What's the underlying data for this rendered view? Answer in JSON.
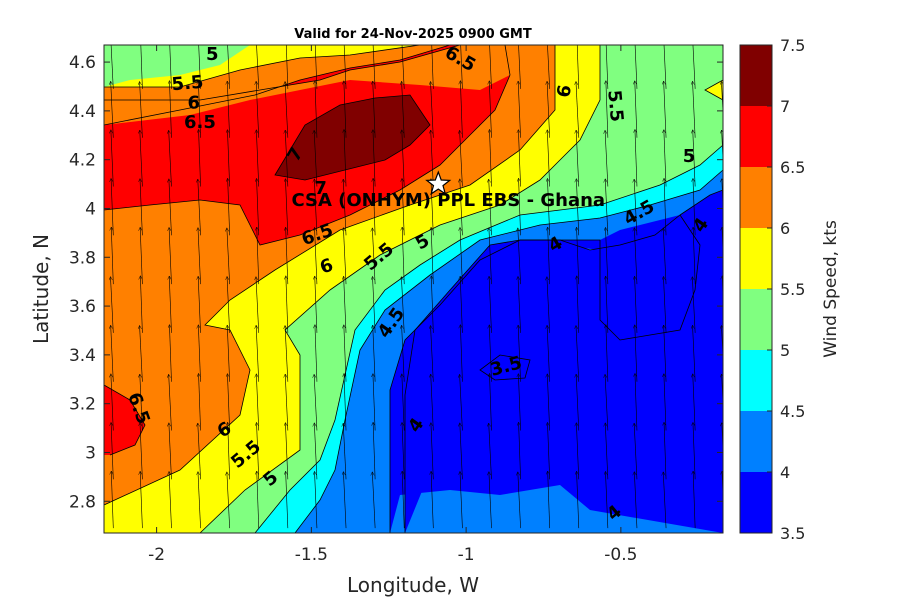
{
  "chart_data": {
    "type": "contour",
    "title": "Valid for 24-Nov-2025 0900 GMT",
    "xlabel": "Longitude, W",
    "ylabel": "Latitude, N",
    "xlim": [
      -2.17,
      -0.17
    ],
    "ylim": [
      2.67,
      4.67
    ],
    "x_ticks": [
      -2,
      -1.5,
      -1,
      -0.5
    ],
    "x_tick_labels": [
      "-2",
      "-1.5",
      "-1",
      "-0.5"
    ],
    "y_ticks": [
      2.8,
      3.0,
      3.2,
      3.4,
      3.6,
      3.8,
      4.0,
      4.2,
      4.4,
      4.6
    ],
    "y_tick_labels": [
      "2.8",
      "3",
      "3.2",
      "3.4",
      "3.6",
      "3.8",
      "4",
      "4.2",
      "4.4",
      "4.6"
    ],
    "colorbar": {
      "label": "Wind Speed, kts",
      "levels": [
        3.5,
        4,
        4.5,
        5,
        5.5,
        6,
        6.5,
        7,
        7.5
      ],
      "tick_labels": [
        "3.5",
        "4",
        "4.5",
        "5",
        "5.5",
        "6",
        "6.5",
        "7",
        "7.5"
      ],
      "colors": [
        "#0000ff",
        "#0080ff",
        "#00ffff",
        "#80ff80",
        "#ffff00",
        "#ff8000",
        "#ff0000",
        "#800000"
      ]
    },
    "contour_labels": [
      {
        "text": "5",
        "x": -1.82,
        "y": 4.63,
        "rot": 0
      },
      {
        "text": "5.5",
        "x": -1.9,
        "y": 4.51,
        "rot": -5
      },
      {
        "text": "6",
        "x": -1.88,
        "y": 4.43,
        "rot": 0
      },
      {
        "text": "6.5",
        "x": -1.86,
        "y": 4.35,
        "rot": 0
      },
      {
        "text": "6.5",
        "x": -1.02,
        "y": 4.61,
        "rot": 30
      },
      {
        "text": "6",
        "x": -0.68,
        "y": 4.48,
        "rot": -80
      },
      {
        "text": "5.5",
        "x": -0.52,
        "y": 4.42,
        "rot": 85
      },
      {
        "text": "7",
        "x": -1.55,
        "y": 4.22,
        "rot": -60
      },
      {
        "text": "7",
        "x": -1.47,
        "y": 4.08,
        "rot": 0
      },
      {
        "text": "5",
        "x": -0.28,
        "y": 4.21,
        "rot": 0
      },
      {
        "text": "4.5",
        "x": -0.44,
        "y": 3.98,
        "rot": -30
      },
      {
        "text": "4",
        "x": -0.24,
        "y": 3.93,
        "rot": -55
      },
      {
        "text": "6.5",
        "x": -1.48,
        "y": 3.89,
        "rot": -20
      },
      {
        "text": "5",
        "x": -1.14,
        "y": 3.86,
        "rot": -30
      },
      {
        "text": "5.5",
        "x": -1.28,
        "y": 3.8,
        "rot": -40
      },
      {
        "text": "6",
        "x": -1.45,
        "y": 3.76,
        "rot": -20
      },
      {
        "text": "4",
        "x": -0.71,
        "y": 3.85,
        "rot": -30
      },
      {
        "text": "4.5",
        "x": -1.24,
        "y": 3.53,
        "rot": -55
      },
      {
        "text": "3.5",
        "x": -0.87,
        "y": 3.35,
        "rot": -15
      },
      {
        "text": "6.5",
        "x": -2.06,
        "y": 3.18,
        "rot": 70
      },
      {
        "text": "4",
        "x": -1.16,
        "y": 3.11,
        "rot": -55
      },
      {
        "text": "6",
        "x": -1.78,
        "y": 3.09,
        "rot": -30
      },
      {
        "text": "5.5",
        "x": -1.71,
        "y": 2.99,
        "rot": -40
      },
      {
        "text": "5",
        "x": -1.63,
        "y": 2.89,
        "rot": -40
      },
      {
        "text": "4",
        "x": -0.52,
        "y": 2.75,
        "rot": -40
      }
    ],
    "site": {
      "label": "CSA (ONHYM) PPL EBS  - Ghana",
      "lon": -1.09,
      "lat": 4.1
    },
    "vector_note": "wind vectors pointing roughly north-northwest",
    "levels_regions": [
      {
        "level": 4,
        "poly": [
          [
            -1.19,
            2.67
          ],
          [
            -1.19,
            3.38
          ],
          [
            -1.15,
            3.55
          ],
          [
            -1.05,
            3.67
          ],
          [
            -0.93,
            3.82
          ],
          [
            -0.8,
            3.88
          ],
          [
            -0.65,
            3.88
          ],
          [
            -0.55,
            3.85
          ],
          [
            -0.3,
            3.95
          ],
          [
            -0.17,
            4.0
          ],
          [
            -0.17,
            2.67
          ]
        ]
      }
    ]
  }
}
